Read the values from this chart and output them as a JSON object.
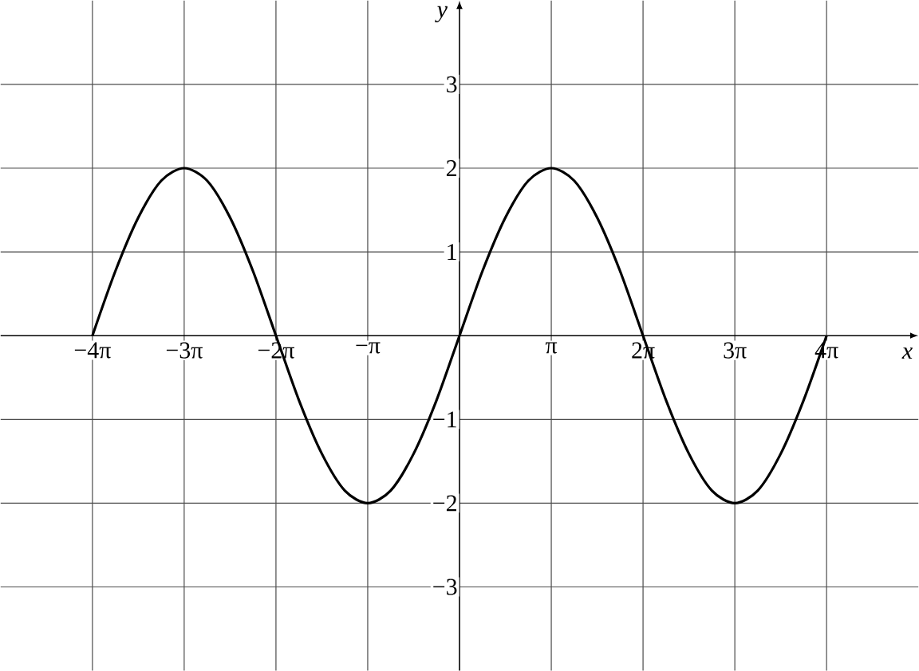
{
  "chart_data": {
    "type": "line",
    "xlabel": "x",
    "ylabel": "y",
    "xlim": [
      -15.708,
      15.708
    ],
    "ylim": [
      -4,
      4
    ],
    "xticks": [
      {
        "value": -12.566,
        "label": "−4π"
      },
      {
        "value": -9.425,
        "label": "−3π"
      },
      {
        "value": -6.283,
        "label": "−2π"
      },
      {
        "value": -3.142,
        "label": "−π"
      },
      {
        "value": 0,
        "label": null
      },
      {
        "value": 3.142,
        "label": "π"
      },
      {
        "value": 6.283,
        "label": "2π"
      },
      {
        "value": 9.425,
        "label": "3π"
      },
      {
        "value": 12.566,
        "label": "4π"
      }
    ],
    "yticks": [
      {
        "value": -3,
        "label": "−3"
      },
      {
        "value": -2,
        "label": "−2"
      },
      {
        "value": -1,
        "label": "−1"
      },
      {
        "value": 0,
        "label": null
      },
      1,
      2,
      3
    ],
    "grid": true,
    "marker": "none",
    "line_style": "solid",
    "series": [
      {
        "color": "#000000",
        "x": [
          -12.566,
          -11.781,
          -10.996,
          -10.21,
          -9.425,
          -8.639,
          -7.854,
          -7.069,
          -6.283,
          -5.498,
          -4.712,
          -3.927,
          -3.142,
          -2.356,
          -1.571,
          -0.785,
          0,
          0.785,
          1.571,
          2.356,
          3.142,
          3.927,
          4.712,
          5.498,
          6.283,
          7.069,
          7.854,
          8.639,
          9.425,
          10.21,
          10.996,
          11.781,
          12.566
        ],
        "values": [
          0,
          0.77,
          1.41,
          1.85,
          2,
          1.85,
          1.41,
          0.77,
          0,
          -0.77,
          -1.41,
          -1.85,
          -2,
          -1.85,
          -1.41,
          -0.77,
          0,
          0.77,
          1.41,
          1.85,
          2,
          1.85,
          1.41,
          0.77,
          0,
          -0.77,
          -1.41,
          -1.85,
          -2,
          -1.85,
          -1.41,
          -0.77,
          0
        ]
      }
    ]
  }
}
